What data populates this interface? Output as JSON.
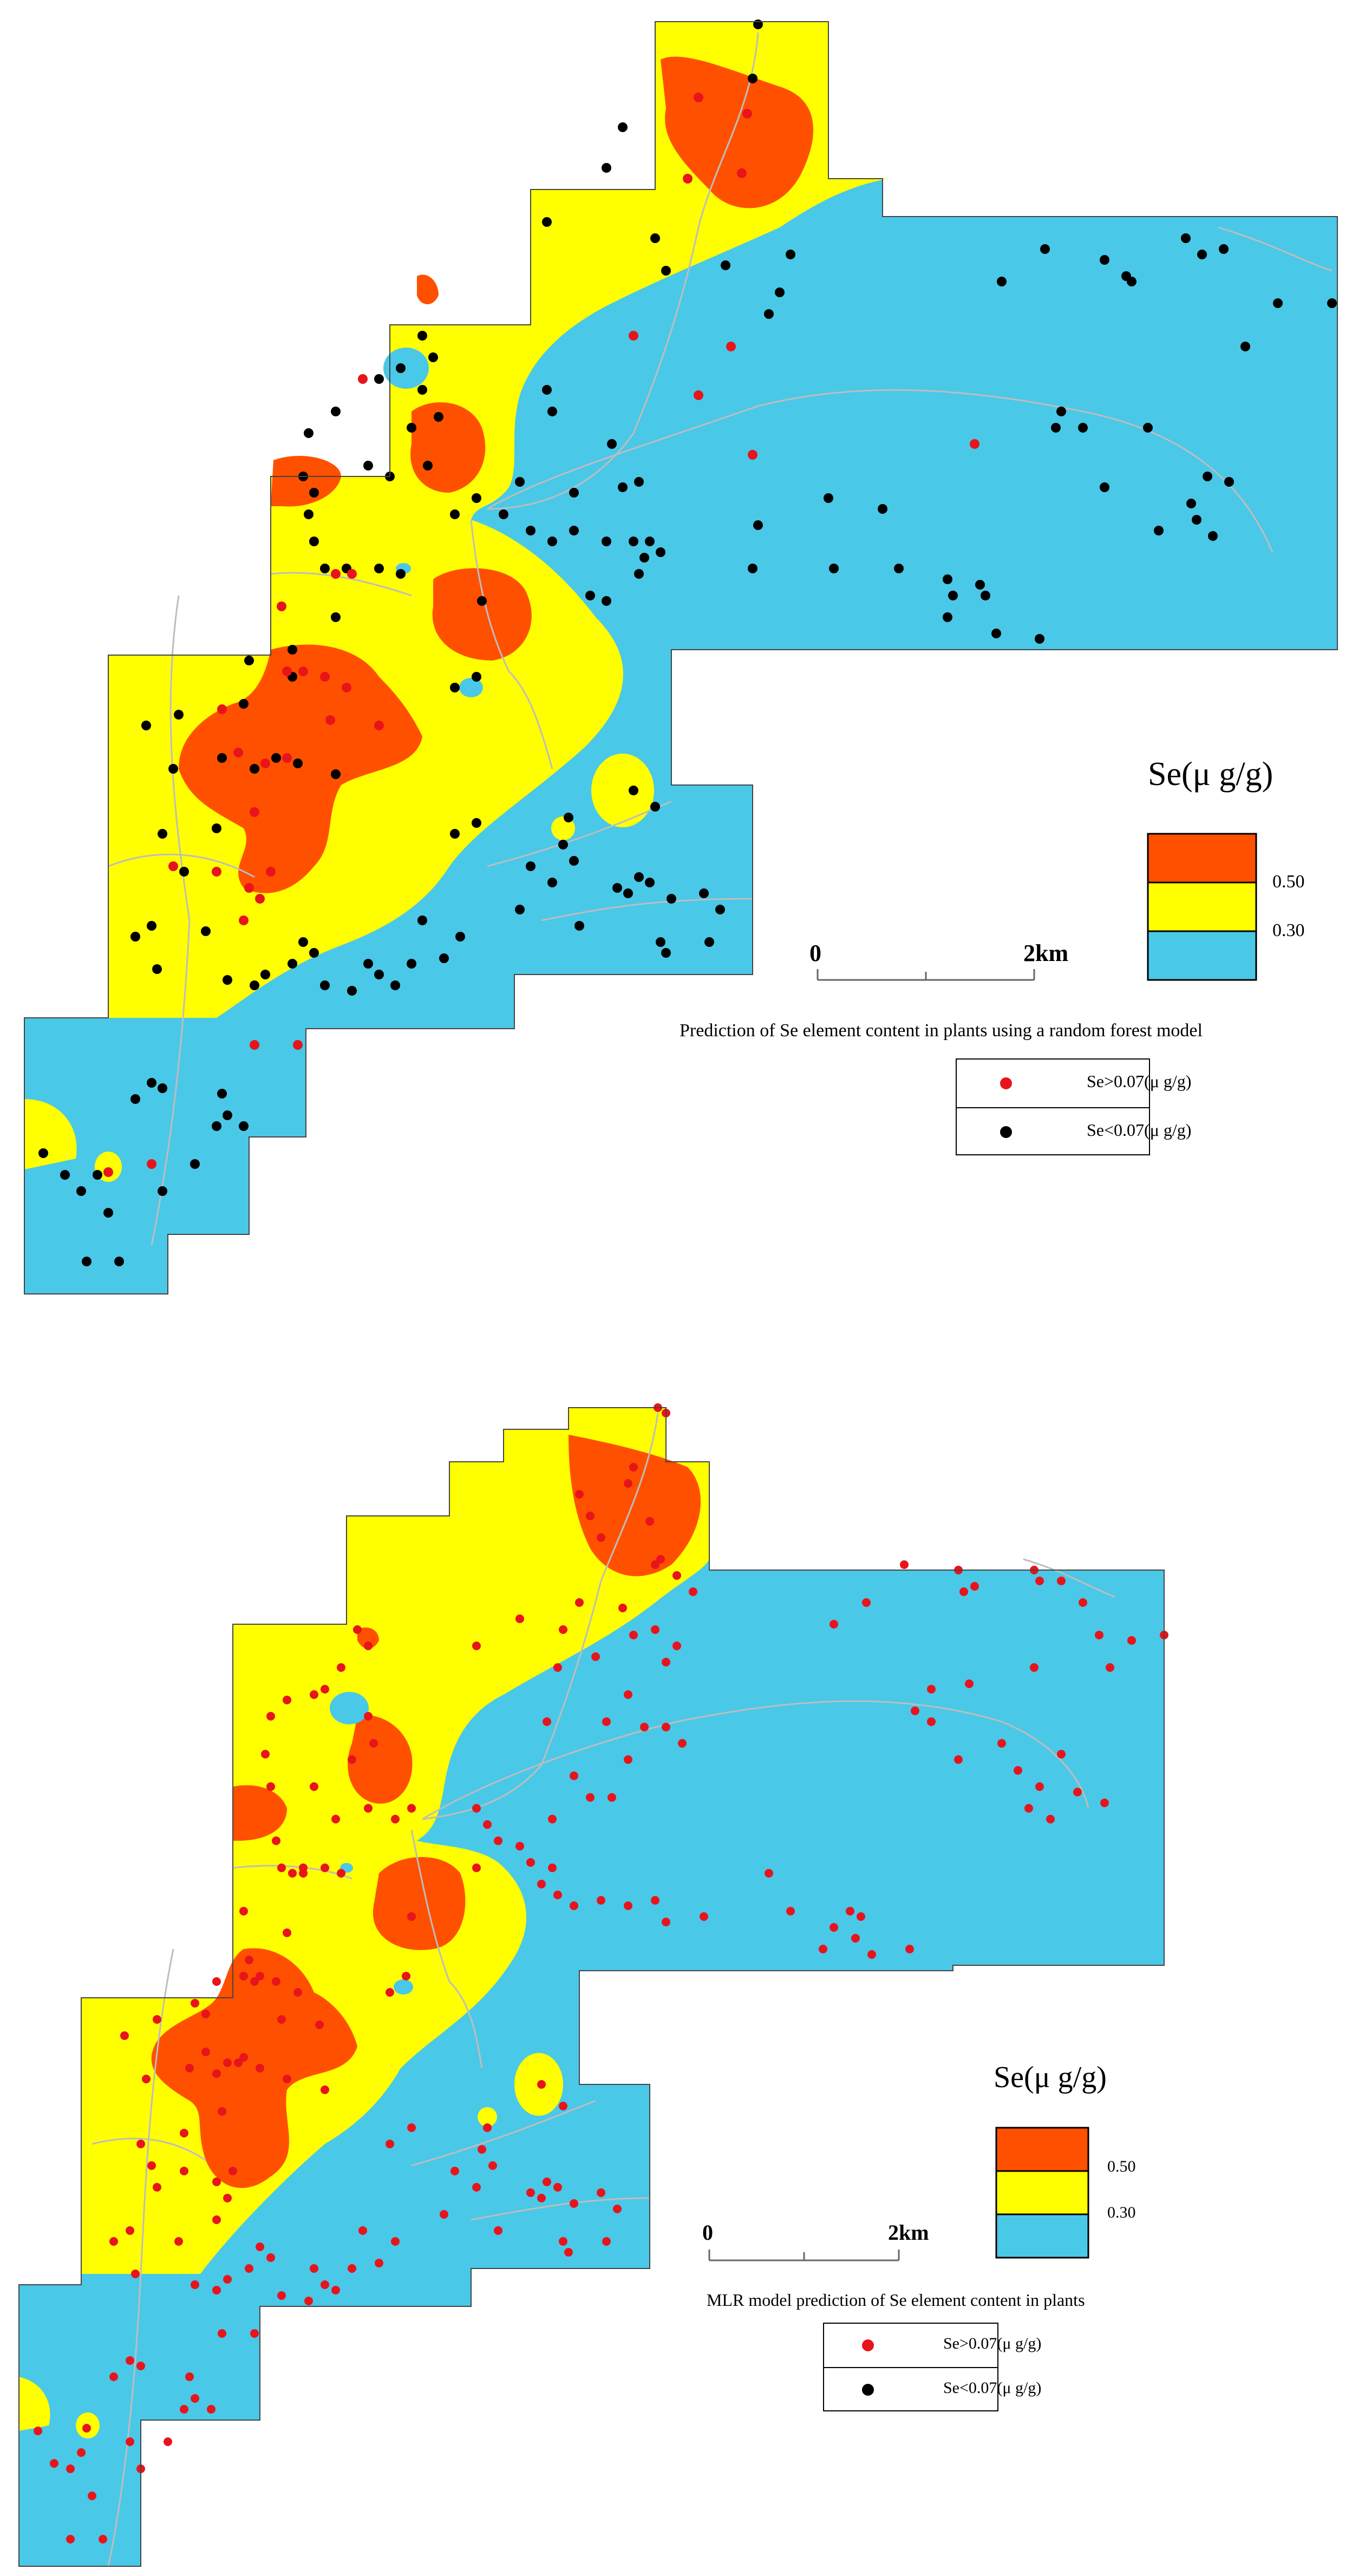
{
  "panels": [
    {
      "caption": "Prediction of Se element content in plants using a random forest model",
      "legend_title": "Se(μ g/g)",
      "class_breaks": [
        "0.50",
        "0.30"
      ],
      "scale": {
        "start": "0",
        "end": "2km"
      },
      "points_legend": [
        {
          "label": "Se>0.07(μ g/g)",
          "color": "#e8141c"
        },
        {
          "label": "Se<0.07(μ g/g)",
          "color": "#000000"
        }
      ]
    },
    {
      "caption": "MLR model prediction of Se element content in plants",
      "legend_title": "Se(μ g/g)",
      "class_breaks": [
        "0.50",
        "0.30"
      ],
      "scale": {
        "start": "0",
        "end": "2km"
      },
      "points_legend": [
        {
          "label": "Se>0.07(μ g/g)",
          "color": "#e8141c"
        },
        {
          "label": "Se<0.07(μ g/g)",
          "color": "#000000"
        }
      ]
    }
  ],
  "colors": {
    "high": "#ff5000",
    "mid": "#ffff00",
    "low": "#4ac8e8",
    "road": "#bdbdbd",
    "red_point": "#e8141c",
    "black_point": "#000000"
  }
}
